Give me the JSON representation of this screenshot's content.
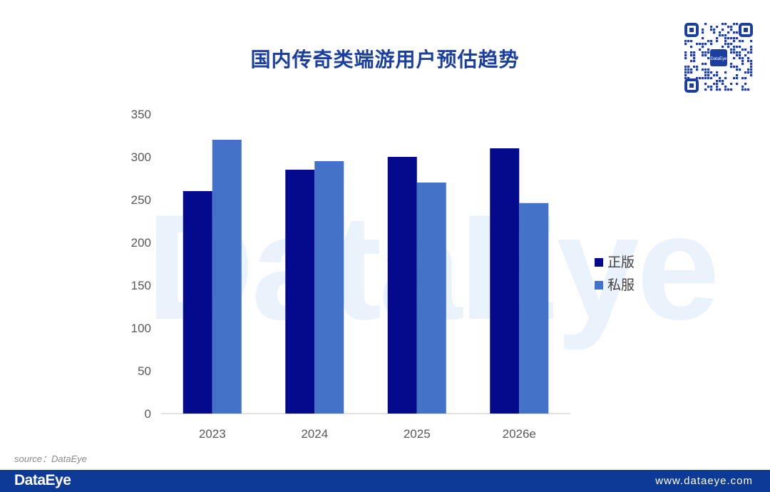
{
  "header": {
    "title": "国内传奇类端游用户预估趋势",
    "qr_center_text": "DataEye"
  },
  "watermark": "DataEye",
  "chart_data": {
    "type": "bar",
    "title": "国内传奇类端游用户预估趋势",
    "xlabel": "",
    "ylabel": "",
    "categories": [
      "2023",
      "2024",
      "2025",
      "2026e"
    ],
    "series": [
      {
        "name": "正版",
        "values": [
          260,
          285,
          300,
          310
        ],
        "color": "#040a8c"
      },
      {
        "name": "私服",
        "values": [
          320,
          295,
          270,
          246
        ],
        "color": "#4472c8"
      }
    ],
    "ylim": [
      0,
      350
    ],
    "yticks": [
      0,
      50,
      100,
      150,
      200,
      250,
      300,
      350
    ],
    "grid": false,
    "legend_position": "right"
  },
  "source_text": "source：DataEye",
  "footer": {
    "logo": "DataEye",
    "url": "www.dataeye.com",
    "background": "#0e3a97"
  }
}
